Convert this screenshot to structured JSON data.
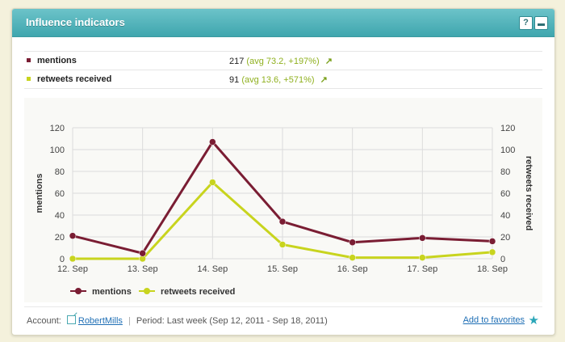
{
  "panel": {
    "title": "Influence indicators",
    "help_label": "?",
    "collapse_label": "–"
  },
  "metrics": [
    {
      "name": "mentions",
      "value": "217",
      "avg": "(avg 73.2, +197%)",
      "color": "#7a1d33",
      "trend_icon": "up-right-arrow-icon"
    },
    {
      "name": "retweets received",
      "value": "91",
      "avg": "(avg 13.6, +571%)",
      "color": "#c8d41e",
      "trend_icon": "up-right-arrow-icon"
    }
  ],
  "chart_data": {
    "type": "line",
    "categories": [
      "12. Sep",
      "13. Sep",
      "14. Sep",
      "15. Sep",
      "16. Sep",
      "17. Sep",
      "18. Sep"
    ],
    "series": [
      {
        "name": "mentions",
        "values": [
          21,
          5,
          107,
          34,
          15,
          19,
          16
        ],
        "color": "#7a1d33",
        "axis": "left"
      },
      {
        "name": "retweets received",
        "values": [
          0,
          0,
          70,
          13,
          1,
          1,
          6
        ],
        "color": "#c8d41e",
        "axis": "right"
      }
    ],
    "ylabel": "mentions",
    "ylabel_right": "retweets received",
    "ylim": [
      0,
      120
    ],
    "yticks": [
      "0",
      "20",
      "40",
      "60",
      "80",
      "100",
      "120"
    ],
    "grid": true,
    "legend": "bottom-left"
  },
  "footer": {
    "account_label": "Account:",
    "account_name": "RobertMills",
    "period_label": "Period:",
    "period_value": "Last week (Sep 12, 2011 - Sep 18, 2011)",
    "favorites_label": "Add to favorites"
  }
}
